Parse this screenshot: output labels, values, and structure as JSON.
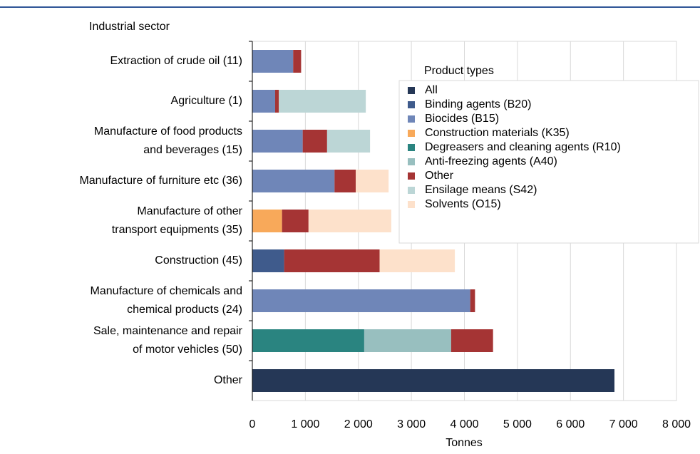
{
  "chart_data": {
    "type": "stacked-barh",
    "y_axis_title": "Industrial sector",
    "x_axis_title": "Tonnes",
    "legend_title": "Product types",
    "legend": "upper right",
    "grid": true,
    "categories": [
      [
        "Extraction of crude oil (11)"
      ],
      [
        "Agriculture (1)"
      ],
      [
        "Manufacture of food products",
        "and beverages (15)"
      ],
      [
        "Manufacture of furniture etc (36)"
      ],
      [
        "Manufacture of other",
        "transport equipments (35)"
      ],
      [
        "Construction (45)"
      ],
      [
        "Manufacture of chemicals and",
        "chemical products (24)"
      ],
      [
        "Sale, maintenance and repair",
        "of motor vehicles (50)"
      ],
      [
        "Other"
      ]
    ],
    "series": [
      {
        "name": "All",
        "color": "#253756",
        "values": [
          null,
          null,
          null,
          null,
          null,
          null,
          null,
          null,
          6830
        ]
      },
      {
        "name": "Binding agents (B20)",
        "color": "#3f5b8c",
        "values": [
          null,
          null,
          null,
          null,
          null,
          600,
          null,
          null,
          null
        ]
      },
      {
        "name": "Biocides (B15)",
        "color": "#6f86b8",
        "values": [
          770,
          430,
          950,
          1550,
          null,
          null,
          4110,
          null,
          null
        ]
      },
      {
        "name": "Construction materials (K35)",
        "color": "#f8a95a",
        "values": [
          null,
          null,
          null,
          null,
          560,
          null,
          null,
          null,
          null
        ]
      },
      {
        "name": "Degreasers and cleaning agents (R10)",
        "color": "#2a8480",
        "values": [
          null,
          null,
          null,
          null,
          null,
          null,
          null,
          2110,
          null
        ]
      },
      {
        "name": "Anti-freezing agents (A40)",
        "color": "#98bfbf",
        "values": [
          null,
          null,
          null,
          null,
          null,
          null,
          null,
          1640,
          null
        ]
      },
      {
        "name": "Other",
        "color": "#a53434",
        "values": [
          150,
          70,
          460,
          400,
          500,
          1800,
          90,
          790,
          null
        ]
      },
      {
        "name": "Ensilage means (S42)",
        "color": "#bcd6d6",
        "values": [
          null,
          1640,
          810,
          null,
          null,
          null,
          null,
          null,
          null
        ]
      },
      {
        "name": "Solvents (O15)",
        "color": "#fde1cb",
        "values": [
          null,
          null,
          null,
          620,
          1560,
          1420,
          null,
          null,
          null
        ]
      }
    ],
    "xlim": [
      0,
      8000
    ],
    "xticks": [
      0,
      {
        "value": 1000,
        "label": "1 000"
      },
      {
        "value": 2000,
        "label": "2 000"
      },
      {
        "value": 3000,
        "label": "3 000"
      },
      {
        "value": 4000,
        "label": "4 000"
      },
      {
        "value": 5000,
        "label": "5 000"
      },
      {
        "value": 6000,
        "label": "6 000"
      },
      {
        "value": 7000,
        "label": "7 000"
      },
      {
        "value": 8000,
        "label": "8 000"
      }
    ]
  }
}
